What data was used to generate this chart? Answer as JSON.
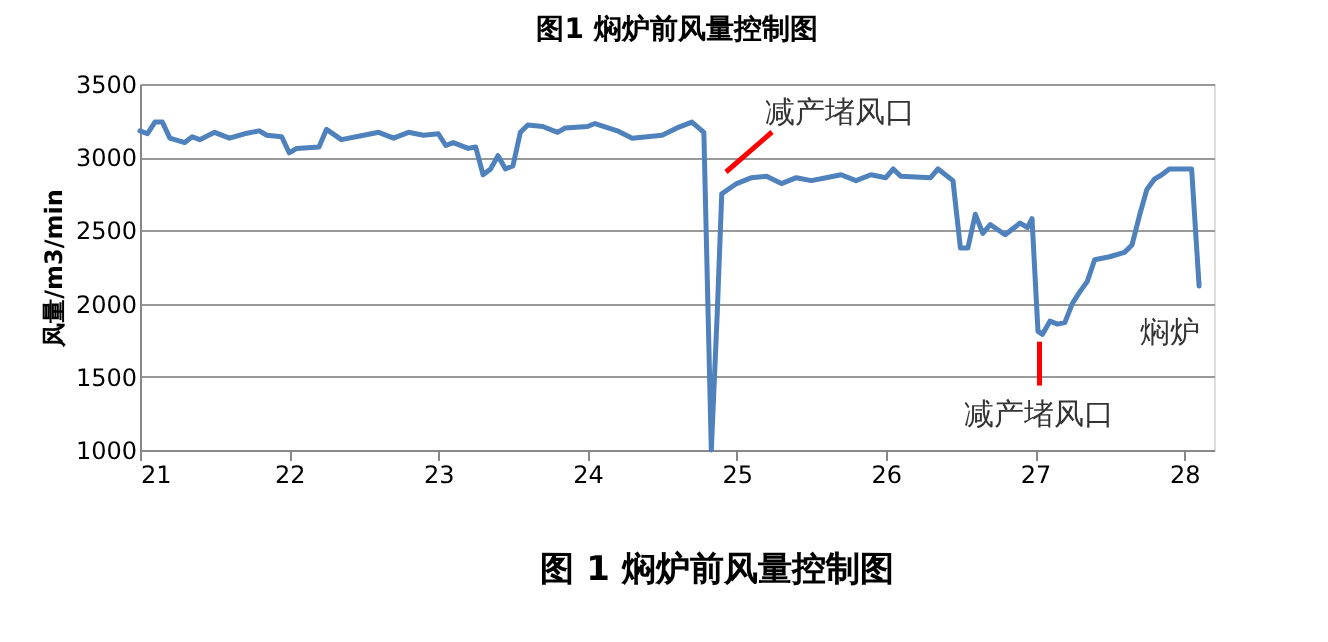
{
  "chart_data": {
    "type": "line",
    "title": "图1 焖炉前风量控制图",
    "ylabel": "风量/m3/min",
    "x": [
      21.0,
      21.05,
      21.1,
      21.15,
      21.2,
      21.3,
      21.35,
      21.4,
      21.5,
      21.6,
      21.7,
      21.8,
      21.85,
      21.95,
      22.0,
      22.05,
      22.2,
      22.25,
      22.35,
      22.5,
      22.6,
      22.7,
      22.8,
      22.9,
      23.0,
      23.05,
      23.1,
      23.2,
      23.25,
      23.3,
      23.35,
      23.4,
      23.45,
      23.5,
      23.55,
      23.6,
      23.7,
      23.8,
      23.85,
      24.0,
      24.05,
      24.2,
      24.3,
      24.4,
      24.5,
      24.6,
      24.7,
      24.78,
      24.83,
      24.87,
      24.9,
      25.0,
      25.1,
      25.2,
      25.3,
      25.4,
      25.5,
      25.6,
      25.7,
      25.8,
      25.9,
      26.0,
      26.05,
      26.1,
      26.3,
      26.35,
      26.45,
      26.5,
      26.55,
      26.6,
      26.65,
      26.7,
      26.8,
      26.9,
      26.95,
      26.98,
      27.02,
      27.05,
      27.1,
      27.15,
      27.2,
      27.25,
      27.3,
      27.35,
      27.4,
      27.5,
      27.6,
      27.65,
      27.7,
      27.75,
      27.8,
      27.85,
      27.9,
      28.05,
      28.1
    ],
    "series": [
      {
        "color": "#4f81bd",
        "values": [
          3180,
          3160,
          3240,
          3240,
          3130,
          3100,
          3140,
          3120,
          3170,
          3130,
          3160,
          3180,
          3150,
          3140,
          3030,
          3060,
          3070,
          3190,
          3120,
          3150,
          3170,
          3130,
          3170,
          3150,
          3160,
          3080,
          3100,
          3060,
          3070,
          2880,
          2920,
          3010,
          2920,
          2940,
          3170,
          3220,
          3210,
          3170,
          3200,
          3210,
          3230,
          3180,
          3130,
          3140,
          3150,
          3200,
          3240,
          3170,
          1000,
          1940,
          2750,
          2820,
          2860,
          2870,
          2820,
          2860,
          2840,
          2860,
          2880,
          2840,
          2880,
          2860,
          2920,
          2870,
          2860,
          2920,
          2840,
          2380,
          2380,
          2610,
          2480,
          2540,
          2470,
          2550,
          2520,
          2580,
          1810,
          1790,
          1880,
          1860,
          1870,
          2000,
          2080,
          2150,
          2300,
          2320,
          2350,
          2400,
          2600,
          2780,
          2850,
          2880,
          2920,
          2920,
          2120
        ]
      }
    ],
    "xlim": [
      21,
      28.2
    ],
    "xticks": [
      21,
      22,
      23,
      24,
      25,
      26,
      27,
      28
    ],
    "ylim": [
      1000,
      3500
    ],
    "yticks": [
      1000,
      1500,
      2000,
      2500,
      3000,
      3500
    ],
    "grid": "y",
    "marker": "none",
    "line_style": "solid",
    "annotations": [
      "减产堵风口",
      {
        "text": "减产堵风口",
        "x": 27.03,
        "y": 1740
      },
      "焖炉",
      "图 1    焖炉前风量控制图"
    ]
  }
}
